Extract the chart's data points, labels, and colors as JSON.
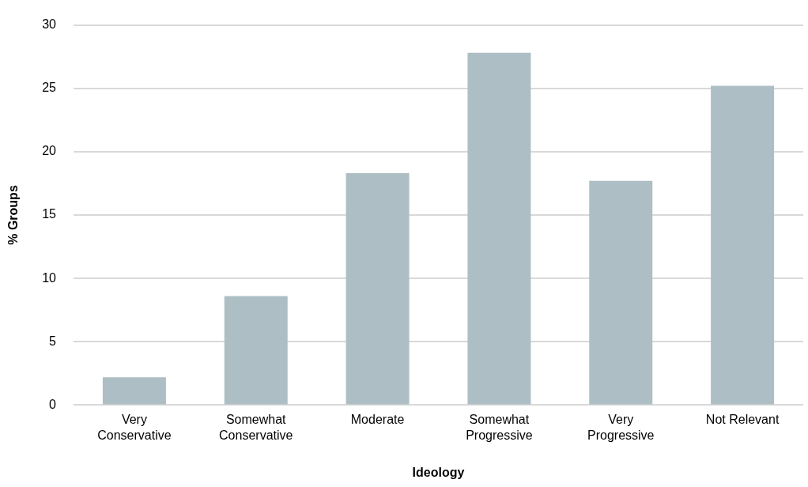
{
  "chart_data": {
    "type": "bar",
    "xlabel": "Ideology",
    "ylabel": "% Groups",
    "categories": [
      "Very Conservative",
      "Somewhat Conservative",
      "Moderate",
      "Somewhat Progressive",
      "Very Progressive",
      "Not Relevant"
    ],
    "values": [
      2.2,
      8.6,
      18.3,
      27.8,
      17.7,
      25.2
    ],
    "color": "#adbfc4",
    "ylim": [
      0,
      30
    ],
    "yticks": [
      0,
      5,
      10,
      15,
      20,
      25,
      30
    ],
    "grid": "y"
  }
}
